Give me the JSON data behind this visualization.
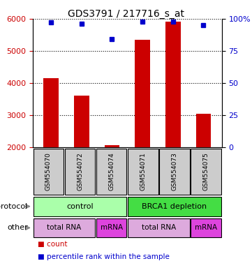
{
  "title": "GDS3791 / 217716_s_at",
  "samples": [
    "GSM554070",
    "GSM554072",
    "GSM554074",
    "GSM554071",
    "GSM554073",
    "GSM554075"
  ],
  "counts": [
    4150,
    3600,
    2080,
    5340,
    5900,
    3050
  ],
  "percentile_ranks": [
    97,
    96,
    84,
    98,
    98,
    95
  ],
  "ylim_left": [
    2000,
    6000
  ],
  "ylim_right": [
    0,
    100
  ],
  "yticks_left": [
    2000,
    3000,
    4000,
    5000,
    6000
  ],
  "yticks_right": [
    0,
    25,
    50,
    75,
    100
  ],
  "bar_color": "#cc0000",
  "dot_color": "#0000cc",
  "protocol_labels": [
    [
      "control",
      3
    ],
    [
      "BRCA1 depletion",
      3
    ]
  ],
  "protocol_colors": [
    "#aaffaa",
    "#44dd44"
  ],
  "other_labels": [
    [
      "total RNA",
      2
    ],
    [
      "mRNA",
      1
    ],
    [
      "total RNA",
      2
    ],
    [
      "mRNA",
      1
    ]
  ],
  "other_colors": [
    "#ddaadd",
    "#dd44dd",
    "#ddaadd",
    "#dd44dd"
  ],
  "left_labels": [
    "protocol",
    "other"
  ],
  "arrow_color": "#888888",
  "grid_color": "#000000",
  "ylabel_left_color": "#cc0000",
  "ylabel_right_color": "#0000cc",
  "sample_box_color": "#cccccc",
  "figsize": [
    3.61,
    3.84
  ],
  "dpi": 100
}
